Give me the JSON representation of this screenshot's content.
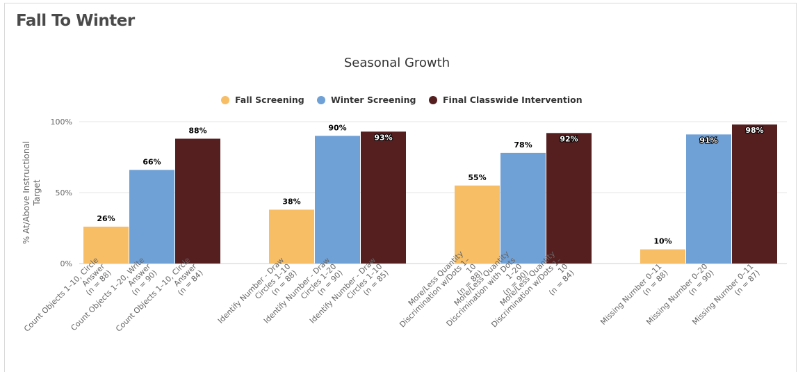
{
  "page": {
    "title": "Fall To Winter"
  },
  "chart_data": {
    "type": "bar",
    "title": "Seasonal Growth",
    "ylabel": "% At/Above Instructional Target",
    "xlabel": "",
    "ylim": [
      0,
      100
    ],
    "yticks": [
      "0%",
      "50%",
      "100%"
    ],
    "grid": true,
    "legend_position": "top-center",
    "colors": {
      "Fall Screening": "#f7be66",
      "Winter Screening": "#6fa0d6",
      "Final Classwide Intervention": "#551f20"
    },
    "series": [
      {
        "name": "Fall Screening"
      },
      {
        "name": "Winter Screening"
      },
      {
        "name": "Final Classwide Intervention"
      }
    ],
    "groups": [
      {
        "bars": [
          {
            "series": "Fall Screening",
            "value": 26,
            "label": "26%",
            "category": [
              "Count Objects 1–10, Circle",
              "Answer",
              "(n = 88)"
            ]
          },
          {
            "series": "Winter Screening",
            "value": 66,
            "label": "66%",
            "category": [
              "Count Objects 1–20, Write",
              "Answer",
              "(n = 90)"
            ]
          },
          {
            "series": "Final Classwide Intervention",
            "value": 88,
            "label": "88%",
            "category": [
              "Count Objects 1–10, Circle",
              "Answer",
              "(n = 84)"
            ]
          }
        ]
      },
      {
        "bars": [
          {
            "series": "Fall Screening",
            "value": 38,
            "label": "38%",
            "category": [
              "Identify Number - Draw",
              "Circles 1–10",
              "(n = 88)"
            ]
          },
          {
            "series": "Winter Screening",
            "value": 90,
            "label": "90%",
            "category": [
              "Identify Number - Draw",
              "Circles 1–20",
              "(n = 90)"
            ]
          },
          {
            "series": "Final Classwide Intervention",
            "value": 93,
            "label": "93%",
            "category": [
              "Identify Number - Draw",
              "Circles 1–10",
              "(n = 85)"
            ]
          }
        ]
      },
      {
        "bars": [
          {
            "series": "Fall Screening",
            "value": 55,
            "label": "55%",
            "category": [
              "More/Less Quantity",
              "Discrimination w/Dots 1–",
              "10",
              "(n = 88)"
            ]
          },
          {
            "series": "Winter Screening",
            "value": 78,
            "label": "78%",
            "category": [
              "More/Less Quantity",
              "Discrimination with Dots",
              "1–20",
              "(n = 90)"
            ]
          },
          {
            "series": "Final Classwide Intervention",
            "value": 92,
            "label": "92%",
            "category": [
              "More/Less Quantity",
              "Discrimination w/Dots 1–",
              "10",
              "(n = 84)"
            ]
          }
        ]
      },
      {
        "bars": [
          {
            "series": "Fall Screening",
            "value": 10,
            "label": "10%",
            "category": [
              "Missing Number 0–11",
              "(n = 88)"
            ]
          },
          {
            "series": "Winter Screening",
            "value": 91,
            "label": "91%",
            "category": [
              "Missing Number 0–20",
              "(n = 90)"
            ]
          },
          {
            "series": "Final Classwide Intervention",
            "value": 98,
            "label": "98%",
            "category": [
              "Missing Number 0–11",
              "(n = 87)"
            ]
          }
        ]
      }
    ]
  }
}
